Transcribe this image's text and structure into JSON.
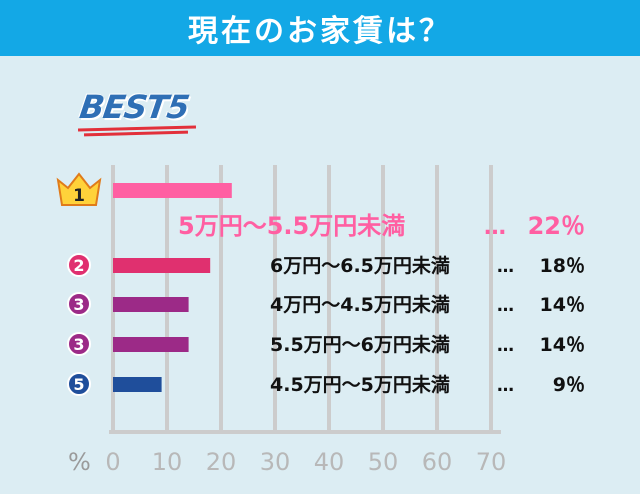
{
  "header": {
    "title": "現在のお家賃は？"
  },
  "badge": {
    "label": "BEST5"
  },
  "colors": {
    "header_bg": "#13a8e6",
    "panel_bg": "#dcedf3",
    "grid": "#cccccc",
    "rank1": "#ff5fa2",
    "rank2": "#e0306f",
    "rank3": "#9c2a87",
    "rank5": "#1f4e9b",
    "text": "#111111"
  },
  "chart_data": {
    "type": "bar",
    "orientation": "horizontal",
    "xlim": [
      0,
      70
    ],
    "xticks": [
      "0",
      "10",
      "20",
      "30",
      "40",
      "50",
      "60",
      "70"
    ],
    "unit": "%",
    "grid": true,
    "rows": [
      {
        "rank": "1",
        "label": "5万円～5.5万円未満",
        "sep": "…",
        "pct_text": "22％",
        "value": 22,
        "color": "#ff5fa2",
        "big": true
      },
      {
        "rank": "2",
        "label": "6万円～6.5万円未満",
        "sep": "…",
        "pct_text": "18％",
        "value": 18,
        "color": "#e0306f"
      },
      {
        "rank": "3",
        "label": "4万円～4.5万円未満",
        "sep": "…",
        "pct_text": "14％",
        "value": 14,
        "color": "#9c2a87"
      },
      {
        "rank": "3",
        "label": "5.5万円～6万円未満",
        "sep": "…",
        "pct_text": "14％",
        "value": 14,
        "color": "#9c2a87"
      },
      {
        "rank": "5",
        "label": "4.5万円～5万円未満",
        "sep": "…",
        "pct_text": "9％",
        "value": 9,
        "color": "#1f4e9b"
      }
    ]
  }
}
